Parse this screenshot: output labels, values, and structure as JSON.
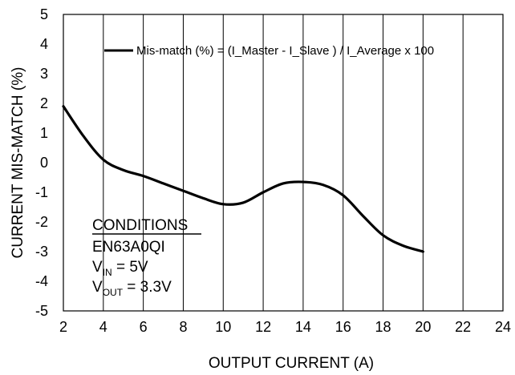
{
  "chart_data": {
    "type": "line",
    "xlabel": "OUTPUT CURRENT (A)",
    "ylabel": "CURRENT MIS-MATCH (%)",
    "xlim": [
      2,
      24
    ],
    "ylim": [
      -5,
      5
    ],
    "xticks": [
      2,
      4,
      6,
      8,
      10,
      12,
      14,
      16,
      18,
      20,
      22,
      24
    ],
    "yticks": [
      5,
      4,
      3,
      2,
      1,
      0,
      -1,
      -2,
      -3,
      -4,
      -5
    ],
    "grid": "vertical",
    "legend_position": "top-right",
    "series": [
      {
        "name": "Mis-match (%) = (I_Master - I_Slave ) / I_Average x 100",
        "color": "#000000",
        "x": [
          2,
          3,
          4,
          5,
          6,
          7,
          8,
          9,
          10,
          11,
          12,
          13,
          14,
          15,
          16,
          17,
          18,
          19,
          20
        ],
        "y": [
          1.9,
          0.9,
          0.1,
          -0.25,
          -0.45,
          -0.7,
          -0.95,
          -1.2,
          -1.4,
          -1.35,
          -1.0,
          -0.7,
          -0.65,
          -0.75,
          -1.1,
          -1.8,
          -2.45,
          -2.8,
          -3.0
        ]
      }
    ],
    "annotation": {
      "heading": "CONDITIONS",
      "device": "EN63A0QI",
      "vin_label": "V",
      "vin_sub": "IN",
      "vin_value": " = 5V",
      "vout_label": "V",
      "vout_sub": "OUT",
      "vout_value": " = 3.3V"
    }
  }
}
